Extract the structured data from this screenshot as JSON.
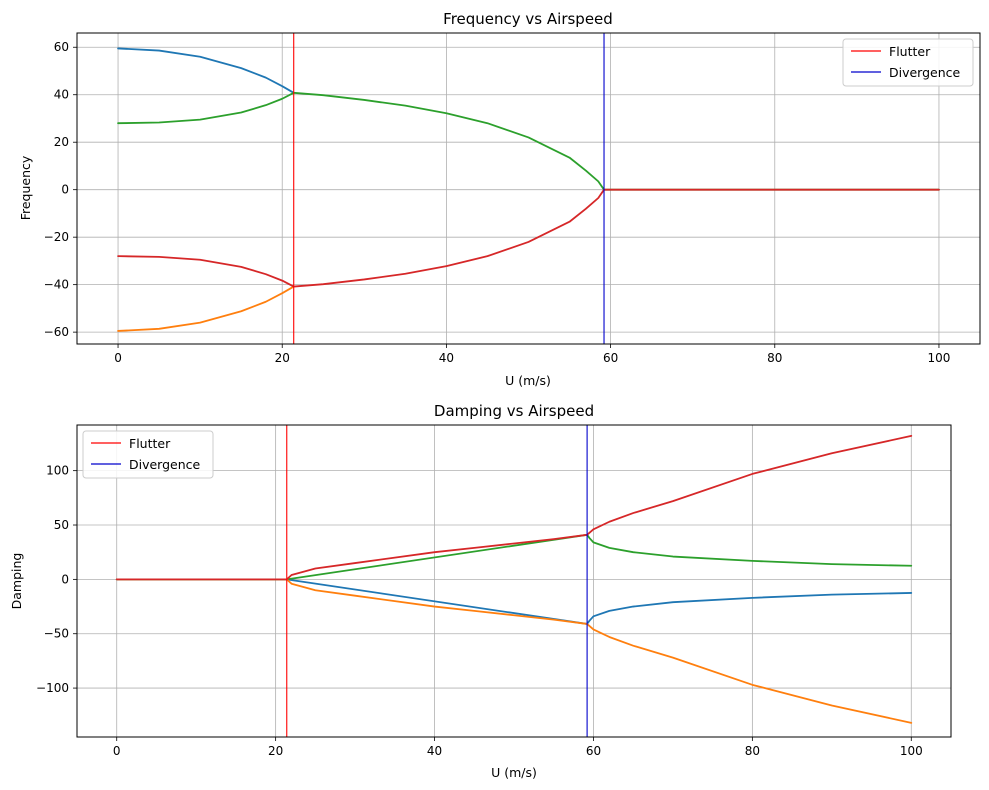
{
  "colors": {
    "blue": "#1f77b4",
    "orange": "#ff7f0e",
    "green": "#2ca02c",
    "red": "#d62728",
    "flutter_line": "#ff0000",
    "divergence_line": "#0000cc",
    "grid": "#b0b0b0"
  },
  "markers": {
    "flutter_u": 21.4,
    "divergence_u": 59.2
  },
  "chart_data": [
    {
      "type": "line",
      "title": "Frequency vs Airspeed",
      "xlabel": "U (m/s)",
      "ylabel": "Frequency",
      "xlim": [
        -5,
        105
      ],
      "ylim": [
        -65,
        66
      ],
      "xticks": [
        0,
        20,
        40,
        60,
        80,
        100
      ],
      "yticks": [
        -60,
        -40,
        -20,
        0,
        20,
        40,
        60
      ],
      "tick_labels_x": [
        "0",
        "20",
        "40",
        "60",
        "80",
        "100"
      ],
      "tick_labels_y": [
        "−60",
        "−40",
        "−20",
        "0",
        "20",
        "40",
        "60"
      ],
      "grid": true,
      "legend_position": "top-right",
      "legend": [
        "Flutter",
        "Divergence"
      ],
      "series": [
        {
          "color": "blue",
          "x": [
            0,
            5,
            10,
            15,
            18,
            20,
            21.4
          ],
          "y": [
            59.5,
            58.6,
            56.0,
            51.2,
            47.2,
            43.6,
            40.8
          ]
        },
        {
          "color": "orange",
          "x": [
            0,
            5,
            10,
            15,
            18,
            20,
            21.4
          ],
          "y": [
            -59.5,
            -58.6,
            -56.0,
            -51.2,
            -47.2,
            -43.6,
            -40.8
          ]
        },
        {
          "color": "green",
          "x": [
            0,
            5,
            10,
            15,
            18,
            20,
            21.4,
            25,
            30,
            35,
            40,
            45,
            50,
            55,
            57,
            58.5,
            59.2,
            60,
            70,
            80,
            90,
            100
          ],
          "y": [
            28.0,
            28.3,
            29.5,
            32.5,
            35.6,
            38.3,
            40.8,
            39.8,
            37.8,
            35.4,
            32.2,
            28.0,
            22.0,
            13.5,
            8.0,
            3.5,
            0.0,
            0.0,
            0.0,
            0.0,
            0.0,
            0.0
          ]
        },
        {
          "color": "red",
          "x": [
            0,
            5,
            10,
            15,
            18,
            20,
            21.4,
            25,
            30,
            35,
            40,
            45,
            50,
            55,
            57,
            58.5,
            59.2,
            60,
            70,
            80,
            90,
            100
          ],
          "y": [
            -28.0,
            -28.3,
            -29.5,
            -32.5,
            -35.6,
            -38.3,
            -40.8,
            -39.8,
            -37.8,
            -35.4,
            -32.2,
            -28.0,
            -22.0,
            -13.5,
            -8.0,
            -3.5,
            0.0,
            0.0,
            0.0,
            0.0,
            0.0,
            0.0
          ]
        }
      ]
    },
    {
      "type": "line",
      "title": "Damping vs Airspeed",
      "xlabel": "U (m/s)",
      "ylabel": "Damping",
      "xlim": [
        -5,
        105
      ],
      "ylim": [
        -145,
        142
      ],
      "xticks": [
        0,
        20,
        40,
        60,
        80,
        100
      ],
      "yticks": [
        -100,
        -50,
        0,
        50,
        100
      ],
      "tick_labels_x": [
        "0",
        "20",
        "40",
        "60",
        "80",
        "100"
      ],
      "tick_labels_y": [
        "−100",
        "−50",
        "0",
        "50",
        "100"
      ],
      "grid": true,
      "legend_position": "top-left",
      "legend": [
        "Flutter",
        "Divergence"
      ],
      "series": [
        {
          "color": "blue",
          "x": [
            0,
            21.4,
            59.2,
            59.5,
            60,
            62,
            65,
            70,
            80,
            90,
            100
          ],
          "y": [
            0,
            0,
            -41,
            -38,
            -34,
            -29,
            -25,
            -21,
            -17,
            -14,
            -12.5
          ]
        },
        {
          "color": "green",
          "x": [
            0,
            21.4,
            59.2,
            59.5,
            60,
            62,
            65,
            70,
            80,
            90,
            100
          ],
          "y": [
            0,
            0,
            41,
            38,
            34,
            29,
            25,
            21,
            17,
            14,
            12.5
          ]
        },
        {
          "color": "orange",
          "x": [
            0,
            21.4,
            22,
            25,
            30,
            35,
            40,
            45,
            50,
            55,
            59.2,
            60,
            62,
            65,
            70,
            80,
            90,
            100
          ],
          "y": [
            0,
            0,
            -4,
            -10,
            -15,
            -20,
            -25,
            -29,
            -33,
            -37,
            -41,
            -46,
            -53,
            -61,
            -72,
            -97,
            -116,
            -132
          ]
        },
        {
          "color": "red",
          "x": [
            0,
            21.4,
            22,
            25,
            30,
            35,
            40,
            45,
            50,
            55,
            59.2,
            60,
            62,
            65,
            70,
            80,
            90,
            100
          ],
          "y": [
            0,
            0,
            4,
            10,
            15,
            20,
            25,
            29,
            33,
            37,
            41,
            46,
            53,
            61,
            72,
            97,
            116,
            132
          ]
        }
      ]
    }
  ]
}
